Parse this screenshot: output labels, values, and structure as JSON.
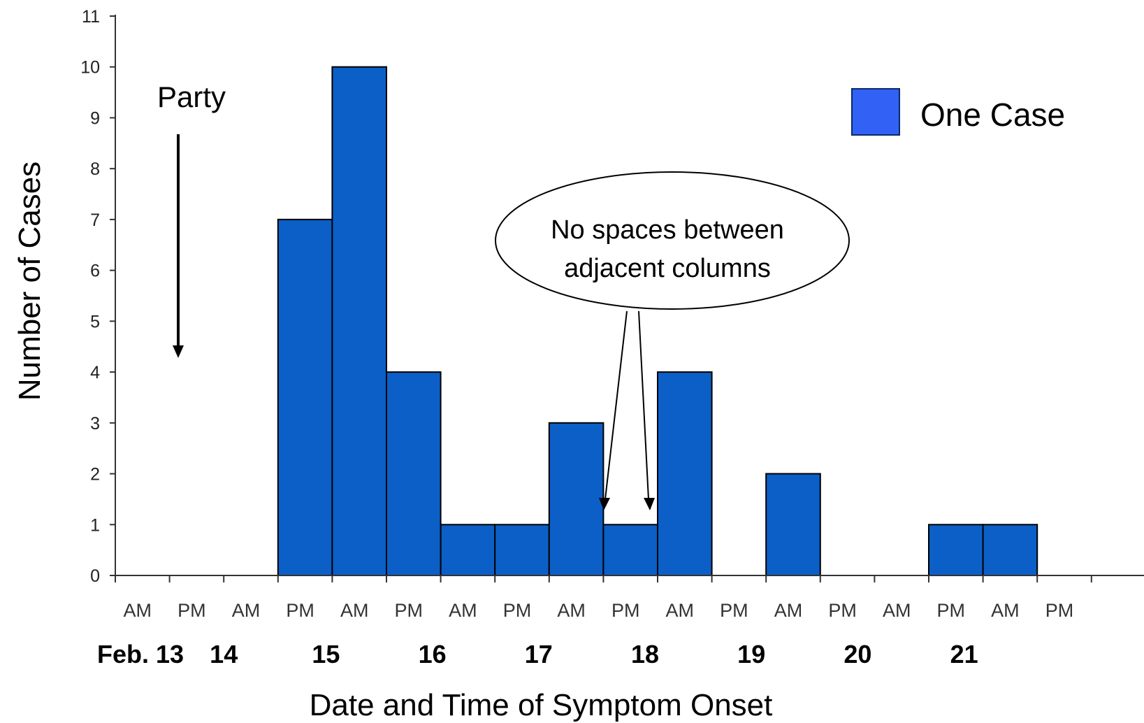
{
  "chart_data": {
    "type": "bar",
    "xlabel": "Date and Time of Symptom Onset",
    "ylabel": "Number of Cases",
    "ylim": [
      0,
      11
    ],
    "yticks": [
      0,
      1,
      2,
      3,
      4,
      5,
      6,
      7,
      8,
      9,
      10,
      11
    ],
    "categories": [
      "AM",
      "PM",
      "AM",
      "PM",
      "AM",
      "PM",
      "AM",
      "PM",
      "AM",
      "PM",
      "AM",
      "PM",
      "AM",
      "PM",
      "AM",
      "PM",
      "AM",
      "PM"
    ],
    "dates": [
      "Feb. 13",
      "14",
      "15",
      "16",
      "17",
      "18",
      "19",
      "20",
      "21"
    ],
    "values": [
      0,
      0,
      0,
      7,
      10,
      4,
      1,
      1,
      3,
      1,
      4,
      0,
      2,
      0,
      0,
      1,
      1,
      0
    ],
    "bar_color": "#0b5fc7",
    "grid": false,
    "legend": {
      "position": "top-right",
      "entries": [
        {
          "label": "One Case",
          "color": "#3162f5"
        }
      ]
    },
    "annotations": {
      "party": "Party",
      "callout_line1": "No spaces between",
      "callout_line2": "adjacent columns"
    }
  }
}
